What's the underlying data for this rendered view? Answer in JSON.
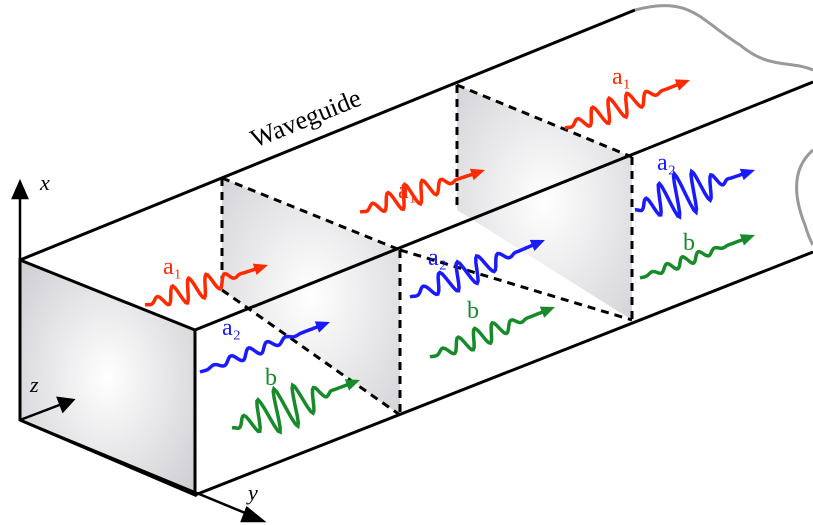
{
  "title": "Waveguide",
  "axes": {
    "x": "x",
    "y": "y",
    "z": "z"
  },
  "waves": [
    {
      "label": "a₁"
    },
    {
      "label": "a₂"
    },
    {
      "label": "b"
    },
    {
      "label": "a₁"
    },
    {
      "label": "a₂"
    },
    {
      "label": "b"
    },
    {
      "label": "a₁"
    },
    {
      "label": "a₂"
    },
    {
      "label": "b"
    }
  ]
}
